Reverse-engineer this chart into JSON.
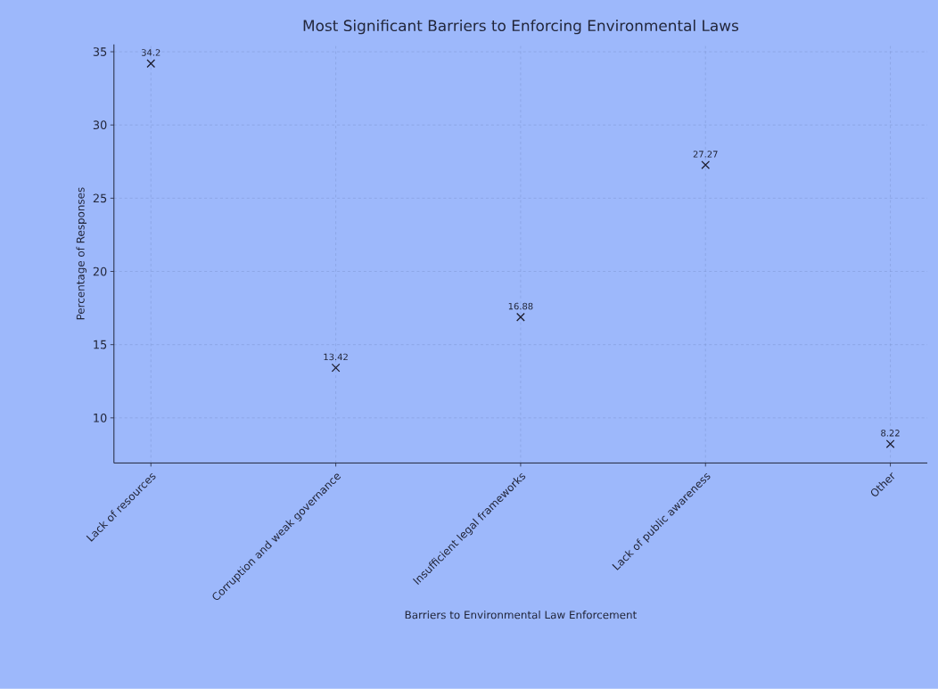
{
  "chart_data": {
    "type": "scatter",
    "title": "Most Significant Barriers to Enforcing Environmental Laws",
    "xlabel": "Barriers to Environmental Law Enforcement",
    "ylabel": "Percentage of Responses",
    "categories": [
      "Lack of resources",
      "Corruption and weak governance",
      "Insufficient legal frameworks",
      "Lack of public awareness",
      "Other"
    ],
    "values": [
      34.2,
      13.42,
      16.88,
      27.27,
      8.22
    ],
    "color": "#1c1c2c",
    "marker": "cross",
    "data_labels": true,
    "grid": true,
    "ylim": [
      6.92,
      35.5
    ],
    "yticks": [
      10,
      15,
      20,
      25,
      30,
      35
    ]
  }
}
